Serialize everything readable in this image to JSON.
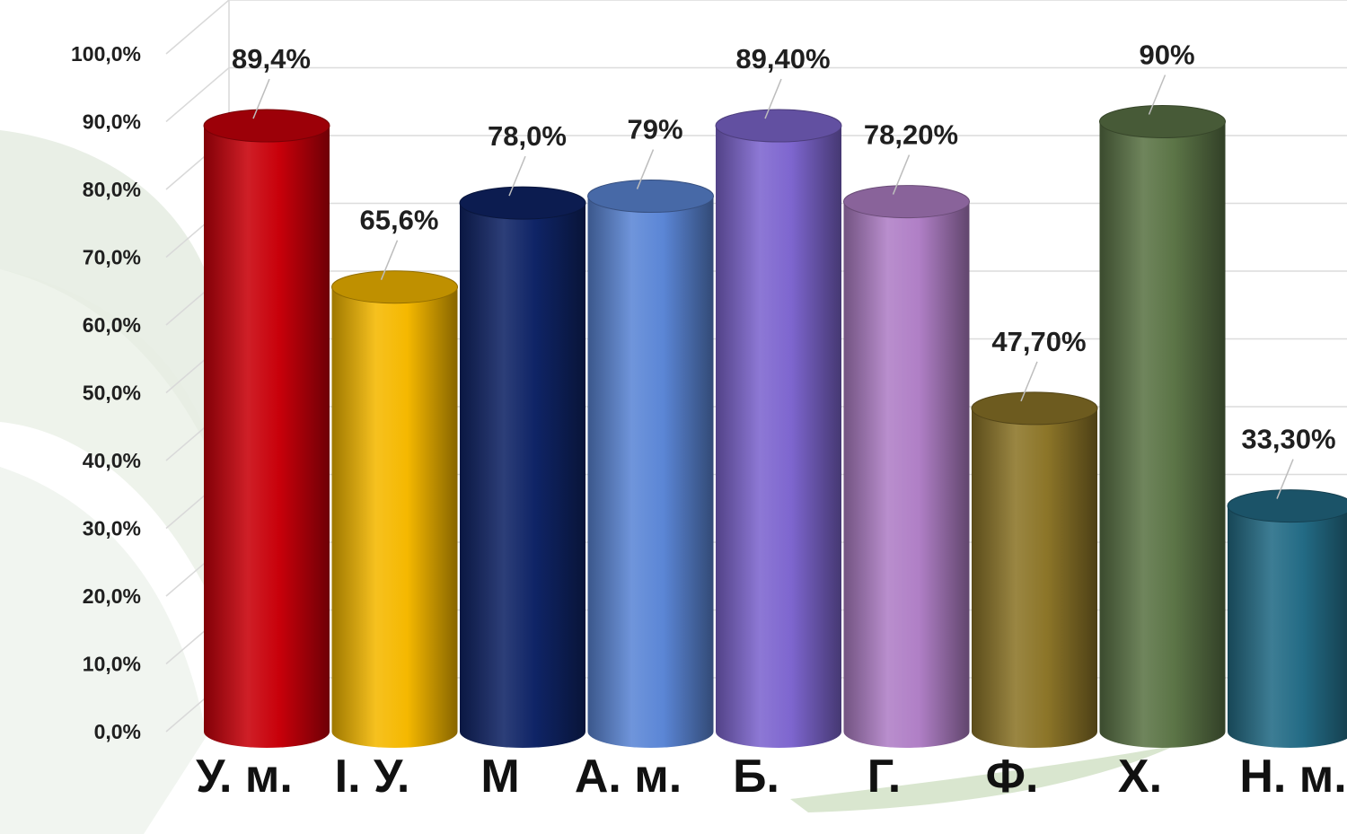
{
  "chart_data": {
    "type": "bar",
    "categories": [
      "У. м.",
      "І. У.",
      "М",
      "А. м.",
      "Б.",
      "Г.",
      "Ф.",
      "Х.",
      "Н. м."
    ],
    "values": [
      89.4,
      65.6,
      78.0,
      79,
      89.4,
      78.2,
      47.7,
      90,
      33.3
    ],
    "data_labels": [
      "89,4%",
      "65,6%",
      "78,0%",
      "79%",
      "89,40%",
      "78,20%",
      "47,70%",
      "90%",
      "33,30%"
    ],
    "colors": [
      "#c8000a",
      "#f5b800",
      "#0f2466",
      "#5b86d6",
      "#7e66cf",
      "#b07fc6",
      "#8c7528",
      "#5b7446",
      "#236b85"
    ],
    "ylim": [
      0,
      100
    ],
    "yticks": [
      "0,0%",
      "10,0%",
      "20,0%",
      "30,0%",
      "40,0%",
      "50,0%",
      "60,0%",
      "70,0%",
      "80,0%",
      "90,0%",
      "100,0%"
    ],
    "grid": true,
    "legend": "none",
    "style": "3d-cylinder"
  }
}
